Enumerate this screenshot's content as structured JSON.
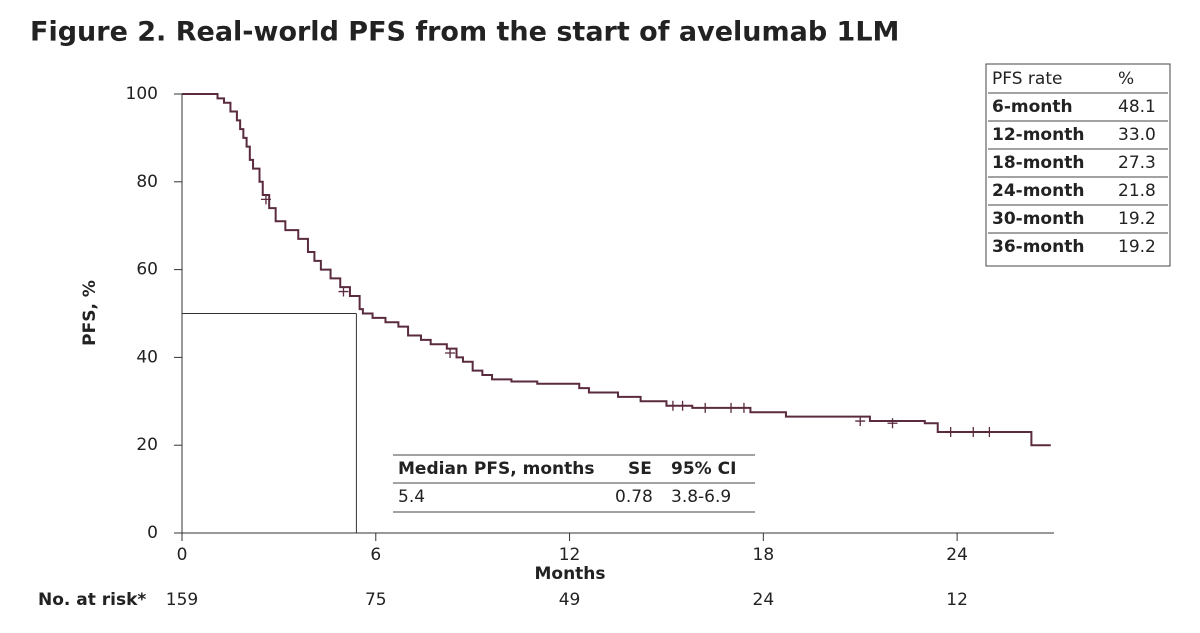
{
  "chart_data": {
    "type": "step",
    "title": "Figure 2. Real-world PFS from the start of avelumab 1LM",
    "y_label": "PFS, %",
    "x_label": "Months",
    "xlim": [
      0,
      27
    ],
    "xticks": [
      0,
      6,
      12,
      18,
      24
    ],
    "ylim": [
      0,
      100
    ],
    "yticks": [
      0,
      20,
      40,
      60,
      80,
      100
    ],
    "series": [
      {
        "color": "#5a2a3f",
        "x": [
          0,
          0.9,
          1.1,
          1.3,
          1.5,
          1.7,
          1.8,
          1.9,
          2.0,
          2.1,
          2.2,
          2.4,
          2.5,
          2.7,
          2.9,
          3.2,
          3.6,
          3.9,
          4.1,
          4.3,
          4.6,
          4.9,
          5.2,
          5.5,
          5.6,
          5.9,
          6.3,
          6.7,
          7.0,
          7.4,
          7.7,
          8.2,
          8.5,
          8.7,
          9.0,
          9.3,
          9.6,
          10.2,
          11.0,
          12.3,
          12.6,
          13.5,
          14.2,
          15.0,
          15.8,
          17.6,
          18.7,
          21.3,
          23.0,
          23.4,
          26.2,
          26.3,
          26.9
        ],
        "values": [
          100,
          100,
          99,
          98,
          96,
          94,
          92,
          90,
          88,
          85,
          83,
          80,
          77,
          74,
          71,
          69,
          67,
          64,
          62,
          60,
          58,
          56,
          54,
          51,
          50,
          49,
          48,
          47,
          45,
          44,
          43,
          42,
          40,
          39,
          37,
          36,
          35,
          34.5,
          34,
          33,
          32,
          31,
          30,
          29,
          28.5,
          27.5,
          26.5,
          25.5,
          25,
          23,
          23,
          20,
          20
        ]
      }
    ],
    "censored": {
      "x": [
        2.6,
        5.0,
        8.3,
        15.2,
        15.5,
        16.2,
        17.0,
        17.4,
        21.0,
        22.0,
        23.8,
        24.5,
        25.0
      ],
      "y": [
        76,
        55,
        41,
        29,
        29,
        28.5,
        28.5,
        28.5,
        25.5,
        25,
        23,
        23,
        23
      ]
    },
    "median_ref": {
      "x": 5.4,
      "y": 50
    },
    "at_risk": {
      "label": "No. at risk*",
      "values": [
        159,
        75,
        49,
        24,
        12
      ]
    }
  },
  "pfs_table": {
    "header": [
      "PFS rate",
      "%"
    ],
    "rows": [
      [
        "6-month",
        "48.1"
      ],
      [
        "12-month",
        "33.0"
      ],
      [
        "18-month",
        "27.3"
      ],
      [
        "24-month",
        "21.8"
      ],
      [
        "30-month",
        "19.2"
      ],
      [
        "36-month",
        "19.2"
      ]
    ]
  },
  "median_table": {
    "header": [
      "Median PFS, months",
      "SE",
      "95% CI"
    ],
    "rows": [
      [
        "5.4",
        "0.78",
        "3.8-6.9"
      ]
    ]
  }
}
